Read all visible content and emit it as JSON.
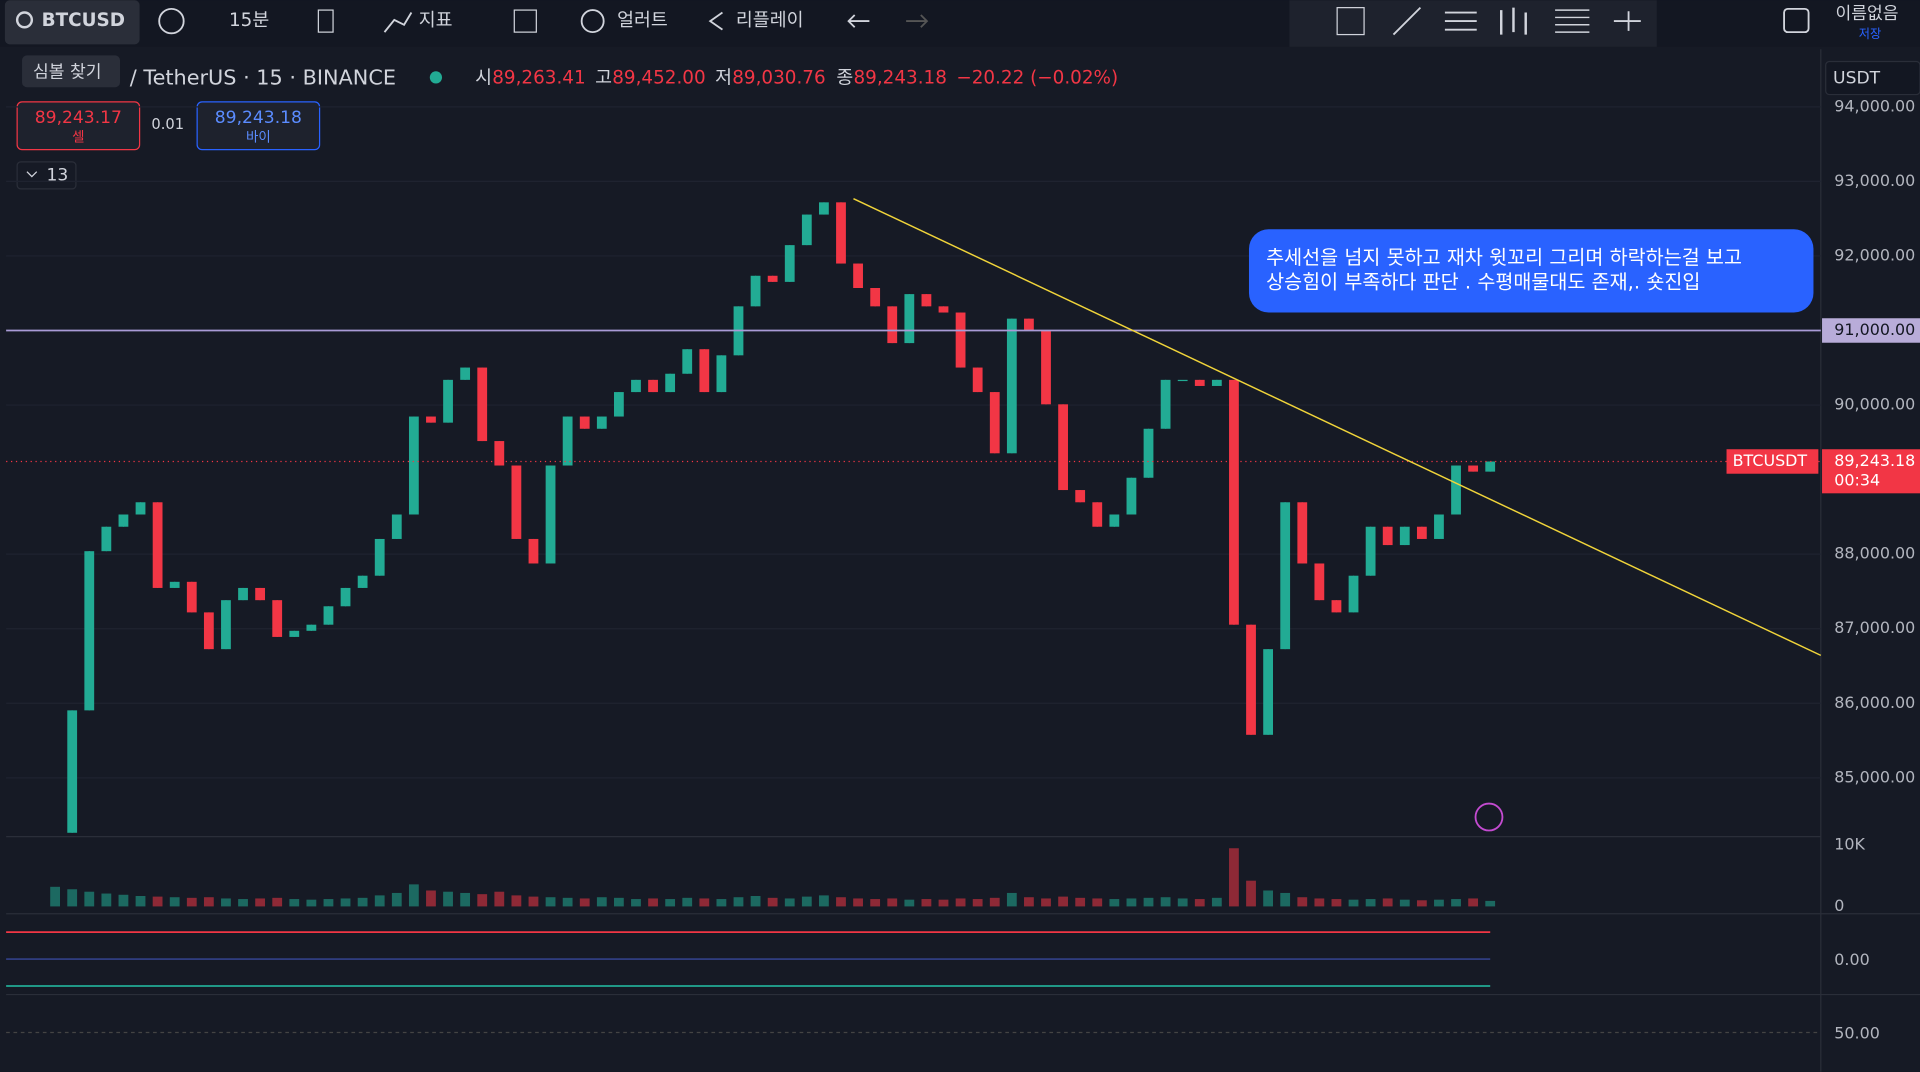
{
  "toolbar": {
    "symbol": "BTCUSD",
    "interval": "15분",
    "indicators": "지표",
    "alert": "얼러트",
    "replay": "리플레이",
    "layout_name": "이름없음",
    "save": "저장"
  },
  "tooltip": "심볼 찾기",
  "legend": {
    "description": "/ TetherUS · 15 · BINANCE",
    "open_label": "시",
    "open": "89,263.41",
    "high_label": "고",
    "high": "89,452.00",
    "low_label": "저",
    "low": "89,030.76",
    "close_label": "종",
    "close": "89,243.18",
    "change": "−20.22 (−0.02%)"
  },
  "trade": {
    "sell_price": "89,243.17",
    "sell": "셀",
    "spread": "0.01",
    "buy_price": "89,243.18",
    "buy": "바이"
  },
  "indicator_count": "13",
  "currency": "USDT",
  "annotation": [
    "추세선을 넘지 못하고 재차 윗꼬리 그리며 하락하는걸 보고",
    "상승힘이 부족하다 판단 . 수평매물대도 존재,. 숏진입"
  ],
  "panes": {
    "oscillator": "0.00",
    "rsi": "50.00"
  },
  "chart_data": {
    "type": "candlestick",
    "closes": [
      84263,
      85905,
      88040,
      88368,
      88532,
      88696,
      87547,
      87629,
      87219,
      86726,
      87383,
      87547,
      87383,
      86890,
      86972,
      87054,
      87301,
      87547,
      87711,
      88204,
      88532,
      89846,
      89764,
      90338,
      90503,
      89517,
      89189,
      88204,
      87875,
      89189,
      89846,
      89682,
      89846,
      90174,
      90338,
      90174,
      90420,
      90749,
      90174,
      90667,
      91324,
      91734,
      91652,
      92145,
      92555,
      92719,
      91898,
      91570,
      91324,
      90831,
      91488,
      91324,
      91241,
      90503,
      90174,
      89353,
      91159,
      90995,
      90010,
      88860,
      88696,
      88368,
      88532,
      89025,
      89682,
      90338,
      90338,
      90256,
      90338,
      87054,
      85577,
      86726,
      88696,
      87875,
      87383,
      87219,
      87711,
      88368,
      88122,
      88368,
      88204,
      88532,
      89189,
      89107,
      89243
    ],
    "volumes": [
      3200,
      2800,
      2400,
      2100,
      1900,
      1700,
      1600,
      1500,
      1400,
      1500,
      1300,
      1200,
      1300,
      1400,
      1200,
      1100,
      1200,
      1300,
      1400,
      1800,
      2200,
      3600,
      2600,
      2400,
      2200,
      2000,
      2400,
      1800,
      1600,
      1500,
      1400,
      1300,
      1500,
      1400,
      1200,
      1300,
      1200,
      1400,
      1300,
      1200,
      1500,
      1700,
      1400,
      1300,
      1600,
      1800,
      1500,
      1300,
      1200,
      1300,
      1100,
      1200,
      1100,
      1300,
      1200,
      1400,
      2200,
      1500,
      1300,
      1600,
      1400,
      1300,
      1200,
      1300,
      1400,
      1500,
      1300,
      1200,
      1400,
      9500,
      4200,
      2600,
      2200,
      1500,
      1300,
      1200,
      1100,
      1200,
      1300,
      1100,
      1000,
      1100,
      1200,
      1300,
      900
    ],
    "ylim": [
      84228,
      94690
    ],
    "yticks": [
      {
        "value": 85000,
        "label": "85,000.00"
      },
      {
        "value": 86000,
        "label": "86,000.00"
      },
      {
        "value": 87000,
        "label": "87,000.00"
      },
      {
        "value": 88000,
        "label": "88,000.00"
      },
      {
        "value": 90000,
        "label": "90,000.00"
      },
      {
        "value": 92000,
        "label": "92,000.00"
      },
      {
        "value": 93000,
        "label": "93,000.00"
      },
      {
        "value": 94000,
        "label": "94,000.00"
      }
    ],
    "horizontal_line": {
      "value": 91000,
      "label": "91,000.00"
    },
    "last_price": {
      "value": 89243.18,
      "label": "89,243.18",
      "symbol": "BTCUSDT",
      "countdown": "00:34"
    },
    "volume_lim": [
      0,
      11000
    ],
    "volume_ticks": [
      {
        "value": 10000,
        "label": "10K"
      },
      0
    ],
    "up_color": "#22ab94",
    "down_color": "#f23645"
  }
}
